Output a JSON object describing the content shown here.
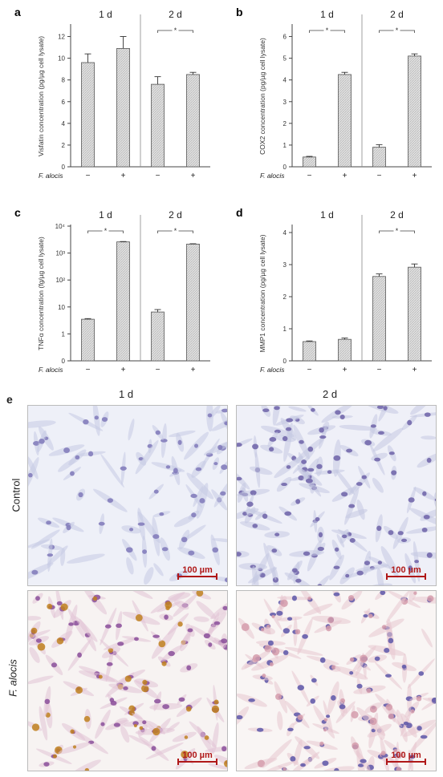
{
  "panel_e": {
    "letter": "e",
    "col_labels": [
      "1 d",
      "2 d"
    ],
    "row_labels": [
      "Control",
      "F. alocis"
    ],
    "scalebar": "100 µm"
  },
  "chart_data": [
    {
      "panel": "a",
      "type": "bar",
      "ylabel": "Visfatin concentration (pg/µg cell lysate)",
      "groups": [
        "1 d",
        "2 d"
      ],
      "categories": [
        "−",
        "+",
        "−",
        "+"
      ],
      "row_label": "F. alocis",
      "values": [
        9.6,
        10.9,
        7.6,
        8.5
      ],
      "errors": [
        0.8,
        1.1,
        0.7,
        0.2
      ],
      "ylim": [
        0,
        13
      ],
      "yticks": [
        0,
        2,
        4,
        6,
        8,
        10,
        12
      ],
      "ytick_labels": [
        "0",
        "2",
        "4",
        "6",
        "8",
        "10",
        "12"
      ],
      "scale": "linear",
      "significance": [
        {
          "group": 1,
          "label": "*"
        }
      ]
    },
    {
      "panel": "b",
      "type": "bar",
      "ylabel": "COX2 concentration (pg/µg cell lysate)",
      "groups": [
        "1 d",
        "2 d"
      ],
      "categories": [
        "−",
        "+",
        "−",
        "+"
      ],
      "row_label": "F. alocis",
      "values": [
        0.45,
        4.25,
        0.9,
        5.1
      ],
      "errors": [
        0.03,
        0.1,
        0.12,
        0.1
      ],
      "ylim": [
        0,
        6.5
      ],
      "yticks": [
        0,
        1,
        2,
        3,
        4,
        5,
        6
      ],
      "ytick_labels": [
        "0",
        "1",
        "2",
        "3",
        "4",
        "5",
        "6"
      ],
      "scale": "linear",
      "significance": [
        {
          "group": 0,
          "label": "*"
        },
        {
          "group": 1,
          "label": "*"
        }
      ]
    },
    {
      "panel": "c",
      "type": "bar",
      "ylabel": "TNFα concentration (fg/µg cell lysate)",
      "groups": [
        "1 d",
        "2 d"
      ],
      "categories": [
        "−",
        "+",
        "−",
        "+"
      ],
      "row_label": "F. alocis",
      "values": [
        3.5,
        2600,
        6.5,
        2150
      ],
      "errors": [
        0.2,
        80,
        1.5,
        70
      ],
      "ylim": [
        0,
        10000
      ],
      "yticks": [
        0,
        1,
        10,
        100,
        1000,
        10000
      ],
      "ytick_labels": [
        "0",
        "1",
        "10",
        "10²",
        "10³",
        "10⁴"
      ],
      "scale": "log",
      "significance": [
        {
          "group": 0,
          "label": "*"
        },
        {
          "group": 1,
          "label": "*"
        }
      ]
    },
    {
      "panel": "d",
      "type": "bar",
      "ylabel": "MMP1 concentration (pg/µg cell lysate)",
      "groups": [
        "1 d",
        "2 d"
      ],
      "categories": [
        "−",
        "+",
        "−",
        "+"
      ],
      "row_label": "F. alocis",
      "values": [
        0.6,
        0.67,
        2.63,
        2.92
      ],
      "errors": [
        0.02,
        0.04,
        0.08,
        0.1
      ],
      "ylim": [
        0,
        4.2
      ],
      "yticks": [
        0,
        1,
        2,
        3,
        4
      ],
      "ytick_labels": [
        "0",
        "1",
        "2",
        "3",
        "4"
      ],
      "scale": "linear",
      "significance": [
        {
          "group": 1,
          "label": "*"
        }
      ]
    }
  ]
}
